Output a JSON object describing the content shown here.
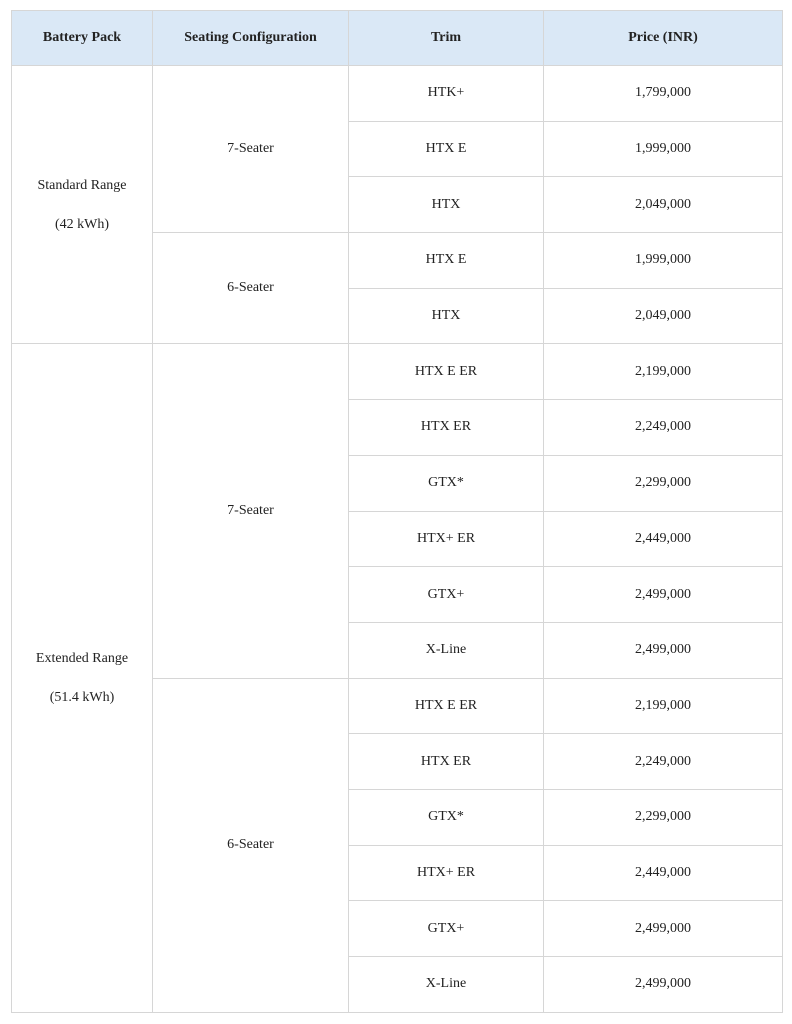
{
  "headers": [
    "Battery Pack",
    "Seating Configuration",
    "Trim",
    "Price (INR)"
  ],
  "groups": [
    {
      "battery": "Standard Range",
      "capacity": "(42 kWh)",
      "seating": [
        {
          "config": "7-Seater",
          "trims": [
            {
              "trim": "HTK+",
              "price": "1,799,000"
            },
            {
              "trim": "HTX E",
              "price": "1,999,000"
            },
            {
              "trim": "HTX",
              "price": "2,049,000"
            }
          ]
        },
        {
          "config": "6-Seater",
          "trims": [
            {
              "trim": "HTX E",
              "price": "1,999,000"
            },
            {
              "trim": "HTX",
              "price": "2,049,000"
            }
          ]
        }
      ]
    },
    {
      "battery": "Extended Range",
      "capacity": "(51.4 kWh)",
      "seating": [
        {
          "config": "7-Seater",
          "trims": [
            {
              "trim": "HTX E ER",
              "price": "2,199,000"
            },
            {
              "trim": "HTX ER",
              "price": "2,249,000"
            },
            {
              "trim": "GTX*",
              "price": "2,299,000"
            },
            {
              "trim": "HTX+ ER",
              "price": "2,449,000"
            },
            {
              "trim": "GTX+",
              "price": "2,499,000"
            },
            {
              "trim": "X-Line",
              "price": "2,499,000"
            }
          ]
        },
        {
          "config": "6-Seater",
          "trims": [
            {
              "trim": "HTX E ER",
              "price": "2,199,000"
            },
            {
              "trim": "HTX ER",
              "price": "2,249,000"
            },
            {
              "trim": "GTX*",
              "price": "2,299,000"
            },
            {
              "trim": "HTX+ ER",
              "price": "2,449,000"
            },
            {
              "trim": "GTX+",
              "price": "2,499,000"
            },
            {
              "trim": "X-Line",
              "price": "2,499,000"
            }
          ]
        }
      ]
    }
  ],
  "colors": {
    "header_bg": "#dae8f6",
    "border": "#d6d6d6"
  }
}
